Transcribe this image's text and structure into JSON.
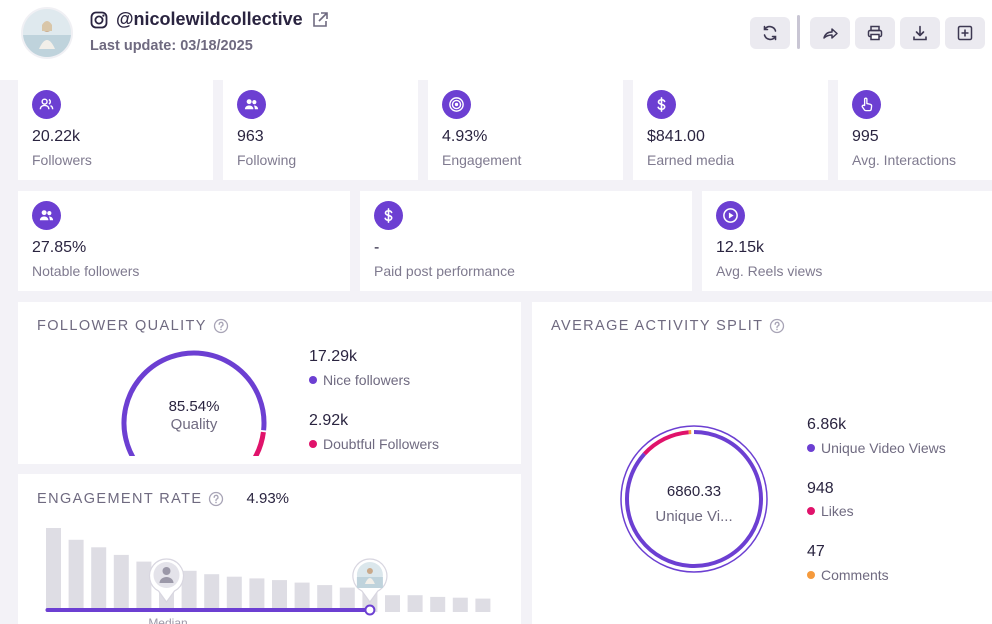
{
  "profile": {
    "handle": "@nicolewildcollective",
    "last_update": "Last update: 03/18/2025"
  },
  "toolbar": [
    {
      "name": "refresh-button",
      "icon": "refresh-icon"
    },
    {
      "name": "share-button",
      "icon": "share-icon"
    },
    {
      "name": "print-button",
      "icon": "print-icon"
    },
    {
      "name": "download-button",
      "icon": "download-icon"
    },
    {
      "name": "add-button",
      "icon": "plus-square-icon"
    }
  ],
  "stats_row1": [
    {
      "value": "20.22k",
      "label": "Followers",
      "icon": "followers-icon"
    },
    {
      "value": "963",
      "label": "Following",
      "icon": "following-icon"
    },
    {
      "value": "4.93%",
      "label": "Engagement",
      "icon": "target-icon"
    },
    {
      "value": "$841.00",
      "label": "Earned media",
      "icon": "dollar-icon"
    },
    {
      "value": "995",
      "label": "Avg. Interactions",
      "icon": "hand-pointer-icon"
    }
  ],
  "stats_row2": [
    {
      "value": "27.85%",
      "label": "Notable followers",
      "icon": "notable-followers-icon"
    },
    {
      "value": "-",
      "label": "Paid post performance",
      "icon": "dollar-icon"
    },
    {
      "value": "12.15k",
      "label": "Avg. Reels views",
      "icon": "play-icon"
    }
  ],
  "follower_quality": {
    "title": "FOLLOWER QUALITY",
    "center_value": "85.54%",
    "center_label": "Quality",
    "nice_fraction": 0.8554,
    "legend": [
      {
        "value": "17.29k",
        "label": "Nice followers",
        "color": "#6c3fd2"
      },
      {
        "value": "2.92k",
        "label": "Doubtful Followers",
        "color": "#e0136b"
      }
    ]
  },
  "activity_split": {
    "title": "AVERAGE ACTIVITY SPLIT",
    "center_value": "6860.33",
    "center_label": "Unique Vi...",
    "legend": [
      {
        "value": "6.86k",
        "label": "Unique Video Views",
        "color": "#6c3fd2",
        "fraction": 0.8676
      },
      {
        "value": "948",
        "label": "Likes",
        "color": "#e0136b",
        "fraction": 0.1199
      },
      {
        "value": "47",
        "label": "Comments",
        "color": "#f59a3c",
        "fraction": 0.0059
      }
    ]
  },
  "engagement_rate": {
    "title": "ENGAGEMENT RATE",
    "value": "4.93%",
    "median_label": "Median",
    "chart_data": {
      "type": "bar",
      "title": "ENGAGEMENT RATE",
      "bar_values": [
        100,
        86,
        77,
        68,
        60,
        54,
        49,
        45,
        42,
        40,
        38,
        35,
        32,
        29,
        26,
        20,
        20,
        18,
        17,
        16
      ],
      "ylim": [
        0,
        100
      ],
      "median_bar_index": 5,
      "profile_bar_index": 14,
      "highlight_range": [
        0,
        14
      ]
    }
  }
}
